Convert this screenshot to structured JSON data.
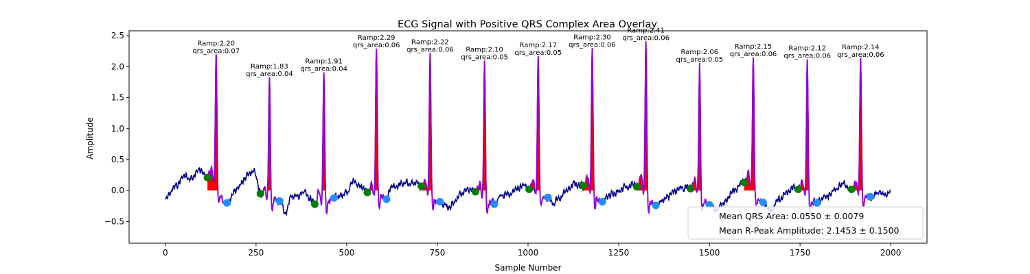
{
  "chart_data": {
    "type": "line",
    "title": "ECG Signal with Positive QRS Complex Area Overlay",
    "xlabel": "Sample Number",
    "ylabel": "Amplitude",
    "xlim": [
      -100,
      2100
    ],
    "ylim": [
      -0.85,
      2.58
    ],
    "xticks": [
      0,
      250,
      500,
      750,
      1000,
      1250,
      1500,
      1750,
      2000
    ],
    "yticks": [
      -0.5,
      0.0,
      0.5,
      1.0,
      1.5,
      2.0,
      2.5
    ],
    "xtick_labels": [
      "0",
      "250",
      "500",
      "750",
      "1000",
      "1250",
      "1500",
      "1750",
      "2000"
    ],
    "ytick_labels": [
      "−0.5",
      "0.0",
      "0.5",
      "1.0",
      "1.5",
      "2.0",
      "2.5"
    ],
    "grid": false,
    "colors": {
      "signal": "#00008b",
      "qrs_segment": "#9400d3",
      "qrs_fill": "#ff0000",
      "onset_marker": "#008000",
      "offset_marker": "#1e90ff"
    },
    "signal_samples": 2000,
    "beats": [
      {
        "r_peak": 140,
        "amplitude": 2.2,
        "qrs_area": 0.07,
        "onset": [
          116,
          0.21
        ],
        "offset": [
          170,
          -0.2
        ],
        "label_line1": "Ramp:2.20",
        "label_line2": "qrs_area:0.07"
      },
      {
        "r_peak": 287,
        "amplitude": 1.83,
        "qrs_area": 0.04,
        "onset": [
          262,
          -0.05
        ],
        "offset": [
          315,
          -0.17
        ],
        "label_line1": "Ramp:1.83",
        "label_line2": "qrs_area:0.04"
      },
      {
        "r_peak": 437,
        "amplitude": 1.91,
        "qrs_area": 0.04,
        "onset": [
          412,
          -0.22
        ],
        "offset": [
          465,
          -0.12
        ],
        "label_line1": "Ramp:1.91",
        "label_line2": "qrs_area:0.04"
      },
      {
        "r_peak": 582,
        "amplitude": 2.29,
        "qrs_area": 0.06,
        "onset": [
          557,
          -0.03
        ],
        "offset": [
          610,
          -0.14
        ],
        "label_line1": "Ramp:2.29",
        "label_line2": "qrs_area:0.06"
      },
      {
        "r_peak": 730,
        "amplitude": 2.22,
        "qrs_area": 0.06,
        "onset": [
          706,
          0.07
        ],
        "offset": [
          757,
          -0.18
        ],
        "label_line1": "Ramp:2.22",
        "label_line2": "qrs_area:0.06"
      },
      {
        "r_peak": 880,
        "amplitude": 2.1,
        "qrs_area": 0.05,
        "onset": [
          855,
          -0.02
        ],
        "offset": [
          907,
          -0.22
        ],
        "label_line1": "Ramp:2.10",
        "label_line2": "qrs_area:0.05"
      },
      {
        "r_peak": 1028,
        "amplitude": 2.17,
        "qrs_area": 0.05,
        "onset": [
          1003,
          0.02
        ],
        "offset": [
          1055,
          -0.11
        ],
        "label_line1": "Ramp:2.17",
        "label_line2": "qrs_area:0.05"
      },
      {
        "r_peak": 1177,
        "amplitude": 2.3,
        "qrs_area": 0.06,
        "onset": [
          1152,
          0.08
        ],
        "offset": [
          1205,
          -0.18
        ],
        "label_line1": "Ramp:2.30",
        "label_line2": "qrs_area:0.06"
      },
      {
        "r_peak": 1325,
        "amplitude": 2.41,
        "qrs_area": 0.06,
        "onset": [
          1300,
          0.06
        ],
        "offset": [
          1352,
          -0.24
        ],
        "label_line1": "Ramp:2.41",
        "label_line2": "qrs_area:0.06"
      },
      {
        "r_peak": 1473,
        "amplitude": 2.06,
        "qrs_area": 0.05,
        "onset": [
          1448,
          0.03
        ],
        "offset": [
          1500,
          -0.23
        ],
        "label_line1": "Ramp:2.06",
        "label_line2": "qrs_area:0.05"
      },
      {
        "r_peak": 1621,
        "amplitude": 2.15,
        "qrs_area": 0.06,
        "onset": [
          1596,
          0.13
        ],
        "offset": [
          1648,
          -0.19
        ],
        "label_line1": "Ramp:2.15",
        "label_line2": "qrs_area:0.06"
      },
      {
        "r_peak": 1770,
        "amplitude": 2.12,
        "qrs_area": 0.06,
        "onset": [
          1745,
          0.02
        ],
        "offset": [
          1797,
          -0.2
        ],
        "label_line1": "Ramp:2.12",
        "label_line2": "qrs_area:0.06"
      },
      {
        "r_peak": 1917,
        "amplitude": 2.14,
        "qrs_area": 0.06,
        "onset": [
          1892,
          0.02
        ],
        "offset": [
          1944,
          -0.1
        ],
        "label_line1": "Ramp:2.14",
        "label_line2": "qrs_area:0.06"
      }
    ],
    "baseline_wander": [
      [
        0,
        -0.15
      ],
      [
        30,
        0.08
      ],
      [
        55,
        0.25
      ],
      [
        75,
        0.2
      ],
      [
        90,
        0.32
      ],
      [
        105,
        0.28
      ],
      [
        116,
        0.21
      ],
      [
        125,
        0.18
      ],
      [
        170,
        -0.2
      ],
      [
        200,
        0.05
      ],
      [
        225,
        0.22
      ],
      [
        245,
        0.3
      ],
      [
        262,
        -0.05
      ],
      [
        275,
        -0.1
      ],
      [
        315,
        -0.17
      ],
      [
        330,
        -0.4
      ],
      [
        345,
        -0.12
      ],
      [
        365,
        -0.05
      ],
      [
        385,
        0.0
      ],
      [
        400,
        -0.12
      ],
      [
        412,
        -0.22
      ],
      [
        425,
        -0.18
      ],
      [
        465,
        -0.12
      ],
      [
        480,
        -0.1
      ],
      [
        500,
        0.0
      ],
      [
        520,
        0.15
      ],
      [
        540,
        0.05
      ],
      [
        557,
        -0.03
      ],
      [
        570,
        -0.05
      ],
      [
        610,
        -0.14
      ],
      [
        625,
        0.05
      ],
      [
        650,
        0.1
      ],
      [
        680,
        0.12
      ],
      [
        695,
        0.08
      ],
      [
        706,
        0.07
      ],
      [
        718,
        0.02
      ],
      [
        757,
        -0.18
      ],
      [
        775,
        -0.25
      ],
      [
        790,
        -0.2
      ],
      [
        815,
        -0.05
      ],
      [
        835,
        0.03
      ],
      [
        855,
        -0.02
      ],
      [
        868,
        -0.04
      ],
      [
        907,
        -0.22
      ],
      [
        925,
        -0.1
      ],
      [
        950,
        -0.05
      ],
      [
        975,
        0.05
      ],
      [
        990,
        0.08
      ],
      [
        1003,
        0.02
      ],
      [
        1016,
        0.0
      ],
      [
        1055,
        -0.11
      ],
      [
        1070,
        -0.2
      ],
      [
        1085,
        -0.15
      ],
      [
        1105,
        0.0
      ],
      [
        1130,
        0.1
      ],
      [
        1152,
        0.08
      ],
      [
        1165,
        0.05
      ],
      [
        1205,
        -0.18
      ],
      [
        1220,
        -0.1
      ],
      [
        1245,
        0.0
      ],
      [
        1270,
        0.08
      ],
      [
        1290,
        0.1
      ],
      [
        1300,
        0.06
      ],
      [
        1313,
        0.03
      ],
      [
        1352,
        -0.24
      ],
      [
        1375,
        -0.15
      ],
      [
        1400,
        -0.05
      ],
      [
        1425,
        0.05
      ],
      [
        1440,
        0.06
      ],
      [
        1448,
        0.03
      ],
      [
        1461,
        0.0
      ],
      [
        1500,
        -0.23
      ],
      [
        1520,
        -0.3
      ],
      [
        1545,
        -0.15
      ],
      [
        1565,
        0.0
      ],
      [
        1585,
        0.1
      ],
      [
        1596,
        0.13
      ],
      [
        1609,
        0.1
      ],
      [
        1648,
        -0.19
      ],
      [
        1670,
        -0.3
      ],
      [
        1690,
        -0.18
      ],
      [
        1710,
        -0.05
      ],
      [
        1730,
        0.05
      ],
      [
        1745,
        0.02
      ],
      [
        1758,
        0.0
      ],
      [
        1797,
        -0.2
      ],
      [
        1820,
        -0.12
      ],
      [
        1845,
        0.0
      ],
      [
        1870,
        0.1
      ],
      [
        1885,
        0.05
      ],
      [
        1892,
        0.02
      ],
      [
        1905,
        0.0
      ],
      [
        1944,
        -0.1
      ],
      [
        1965,
        -0.05
      ],
      [
        1985,
        -0.08
      ],
      [
        2000,
        0.0
      ]
    ],
    "legend": {
      "position": "lower right",
      "entries": [
        "Mean QRS Area: 0.0550 ± 0.0079",
        "Mean R-Peak Amplitude: 2.1453 ± 0.1500"
      ]
    }
  }
}
